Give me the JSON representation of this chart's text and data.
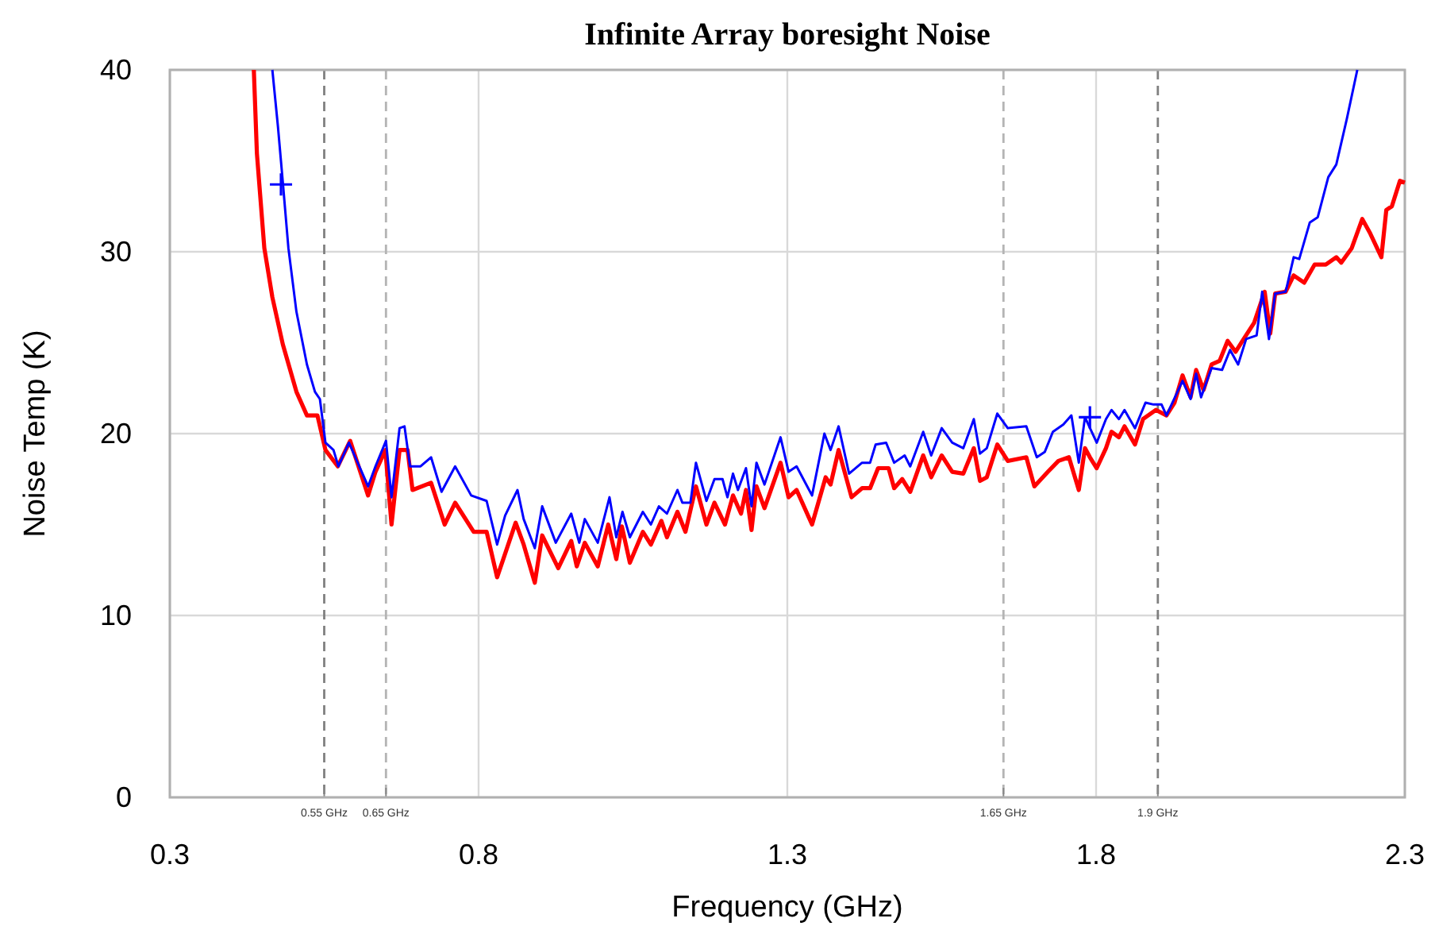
{
  "chart_data": {
    "type": "line",
    "title": "Infinite Array boresight Noise",
    "xlabel": "Frequency (GHz)",
    "ylabel": "Noise Temp (K)",
    "xlim": [
      0.3,
      2.3
    ],
    "ylim": [
      0,
      40
    ],
    "xticks": [
      0.3,
      0.8,
      1.3,
      1.8,
      2.3
    ],
    "yticks": [
      0,
      10,
      20,
      30,
      40
    ],
    "grid": true,
    "marker": "none",
    "line_style": "solid",
    "series": [
      {
        "color": "#ff0000",
        "x": [
          0.436,
          0.441,
          0.453,
          0.466,
          0.483,
          0.505,
          0.522,
          0.539,
          0.552,
          0.572,
          0.592,
          0.621,
          0.633,
          0.649,
          0.659,
          0.672,
          0.685,
          0.693,
          0.723,
          0.745,
          0.762,
          0.792,
          0.813,
          0.83,
          0.86,
          0.873,
          0.891,
          0.903,
          0.929,
          0.95,
          0.959,
          0.972,
          0.993,
          1.01,
          1.023,
          1.032,
          1.045,
          1.066,
          1.079,
          1.096,
          1.105,
          1.122,
          1.135,
          1.152,
          1.169,
          1.182,
          1.199,
          1.212,
          1.225,
          1.233,
          1.242,
          1.25,
          1.263,
          1.289,
          1.302,
          1.315,
          1.34,
          1.362,
          1.37,
          1.383,
          1.404,
          1.421,
          1.434,
          1.447,
          1.464,
          1.473,
          1.486,
          1.499,
          1.52,
          1.533,
          1.55,
          1.567,
          1.585,
          1.602,
          1.612,
          1.623,
          1.64,
          1.657,
          1.687,
          1.7,
          1.722,
          1.739,
          1.756,
          1.772,
          1.782,
          1.79,
          1.801,
          1.816,
          1.825,
          1.837,
          1.846,
          1.863,
          1.876,
          1.897,
          1.914,
          1.927,
          1.94,
          1.953,
          1.962,
          1.974,
          1.987,
          2.0,
          2.013,
          2.026,
          2.039,
          2.056,
          2.073,
          2.082,
          2.09,
          2.107,
          2.12,
          2.137,
          2.154,
          2.172,
          2.189,
          2.197,
          2.214,
          2.231,
          2.244,
          2.262,
          2.27,
          2.279,
          2.292,
          2.3
        ],
        "values": [
          40,
          35.4,
          30.2,
          27.5,
          24.9,
          22.3,
          21,
          21,
          19.1,
          18.2,
          19.6,
          16.6,
          17.9,
          19.1,
          15,
          19.1,
          19.1,
          16.9,
          17.3,
          15,
          16.2,
          14.6,
          14.6,
          12.1,
          15.1,
          13.9,
          11.8,
          14.4,
          12.6,
          14.1,
          12.7,
          14,
          12.7,
          15,
          13.1,
          14.9,
          12.9,
          14.6,
          13.9,
          15.2,
          14.3,
          15.7,
          14.6,
          17.1,
          15,
          16.2,
          15,
          16.6,
          15.6,
          16.9,
          14.7,
          17.1,
          15.9,
          18.4,
          16.5,
          16.9,
          15,
          17.6,
          17.2,
          19.1,
          16.5,
          17,
          17,
          18.1,
          18.1,
          17,
          17.5,
          16.8,
          18.8,
          17.6,
          18.8,
          17.9,
          17.8,
          19.2,
          17.4,
          17.6,
          19.4,
          18.5,
          18.7,
          17.1,
          17.9,
          18.5,
          18.7,
          16.9,
          19.2,
          18.7,
          18.1,
          19.2,
          20.1,
          19.8,
          20.4,
          19.4,
          20.8,
          21.3,
          21,
          21.7,
          23.2,
          22,
          23.5,
          22.4,
          23.8,
          24,
          25.1,
          24.5,
          25.2,
          26.1,
          27.8,
          25.5,
          27.7,
          27.8,
          28.7,
          28.3,
          29.3,
          29.3,
          29.7,
          29.4,
          30.2,
          31.8,
          31,
          29.7,
          32.3,
          32.5,
          33.9,
          33.8
        ]
      },
      {
        "color": "#0000ff",
        "x": [
          0.466,
          0.475,
          0.483,
          0.492,
          0.505,
          0.522,
          0.535,
          0.543,
          0.552,
          0.565,
          0.573,
          0.59,
          0.621,
          0.633,
          0.65,
          0.659,
          0.672,
          0.68,
          0.689,
          0.706,
          0.723,
          0.74,
          0.762,
          0.788,
          0.813,
          0.83,
          0.843,
          0.863,
          0.873,
          0.891,
          0.903,
          0.925,
          0.95,
          0.963,
          0.972,
          0.993,
          1.012,
          1.023,
          1.033,
          1.045,
          1.066,
          1.079,
          1.092,
          1.105,
          1.122,
          1.13,
          1.143,
          1.152,
          1.169,
          1.182,
          1.195,
          1.203,
          1.212,
          1.22,
          1.233,
          1.242,
          1.25,
          1.263,
          1.289,
          1.302,
          1.315,
          1.34,
          1.36,
          1.37,
          1.383,
          1.4,
          1.421,
          1.434,
          1.443,
          1.46,
          1.473,
          1.49,
          1.499,
          1.52,
          1.533,
          1.55,
          1.567,
          1.585,
          1.602,
          1.612,
          1.623,
          1.64,
          1.657,
          1.687,
          1.704,
          1.717,
          1.73,
          1.747,
          1.76,
          1.772,
          1.782,
          1.801,
          1.816,
          1.825,
          1.837,
          1.846,
          1.863,
          1.88,
          1.893,
          1.906,
          1.914,
          1.94,
          1.953,
          1.962,
          1.97,
          1.987,
          2.004,
          2.017,
          2.03,
          2.043,
          2.06,
          2.069,
          2.08,
          2.09,
          2.107,
          2.12,
          2.129,
          2.146,
          2.159,
          2.176,
          2.189,
          2.206,
          2.223
        ],
        "values": [
          40,
          36.9,
          33.8,
          30.2,
          26.7,
          23.8,
          22.3,
          21.9,
          19.5,
          19.1,
          18.2,
          19.5,
          17.1,
          18.2,
          19.6,
          16.5,
          20.3,
          20.4,
          18.2,
          18.2,
          18.7,
          16.8,
          18.2,
          16.6,
          16.3,
          13.9,
          15.5,
          16.9,
          15.3,
          13.7,
          16,
          14,
          15.6,
          14,
          15.3,
          14,
          16.5,
          14.3,
          15.7,
          14.3,
          15.7,
          15,
          16,
          15.6,
          16.9,
          16.2,
          16.2,
          18.4,
          16.3,
          17.5,
          17.5,
          16.5,
          17.8,
          16.9,
          18.1,
          16,
          18.4,
          17.2,
          19.8,
          17.9,
          18.2,
          16.6,
          20,
          19.1,
          20.4,
          17.8,
          18.4,
          18.4,
          19.4,
          19.5,
          18.4,
          18.8,
          18.2,
          20.1,
          18.8,
          20.3,
          19.5,
          19.2,
          20.8,
          18.9,
          19.2,
          21.1,
          20.3,
          20.4,
          18.7,
          19,
          20.1,
          20.5,
          21,
          18.4,
          20.9,
          19.5,
          20.8,
          21.3,
          20.8,
          21.3,
          20.3,
          21.7,
          21.6,
          21.6,
          21,
          22.9,
          21.9,
          23.3,
          22,
          23.6,
          23.5,
          24.6,
          23.8,
          25.2,
          25.4,
          27.8,
          25.2,
          27.7,
          27.8,
          29.7,
          29.6,
          31.6,
          31.9,
          34.1,
          34.8,
          37.3,
          40
        ]
      },
      {
        "type": "scatter",
        "marker": "cross",
        "color": "#0000ff",
        "x": [
          0.48,
          1.79
        ],
        "values": [
          33.7,
          20.9
        ]
      }
    ],
    "ref_lines": [
      {
        "axis": "x",
        "value": 0.55,
        "label": "0.55 GHz",
        "color": "#808080",
        "line_style": "dashed"
      },
      {
        "axis": "x",
        "value": 0.65,
        "label": "0.65 GHz",
        "color": "#b4b4b4",
        "line_style": "dashed"
      },
      {
        "axis": "x",
        "value": 1.65,
        "label": "1.65 GHz",
        "color": "#b4b4b4",
        "line_style": "dashed"
      },
      {
        "axis": "x",
        "value": 1.9,
        "label": "1.9 GHz",
        "color": "#808080",
        "line_style": "dashed"
      }
    ]
  }
}
